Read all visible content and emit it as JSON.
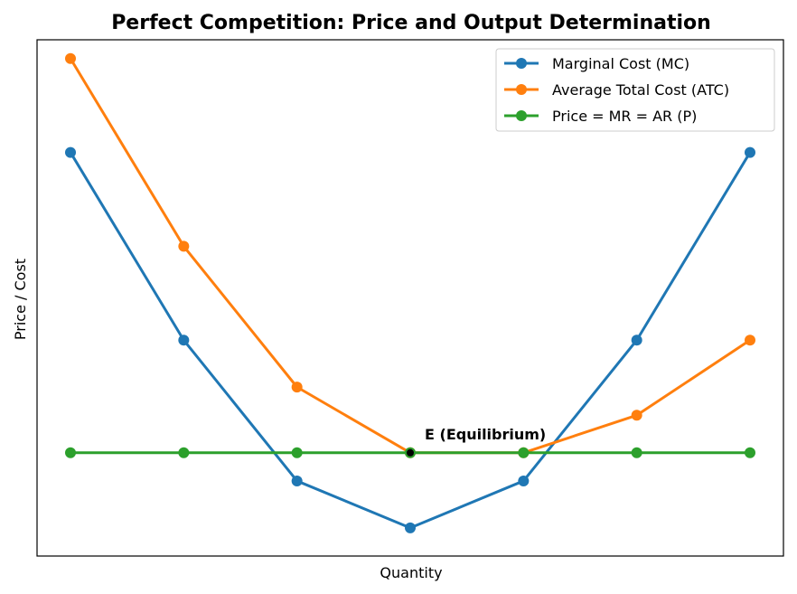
{
  "chart_data": {
    "type": "line",
    "title": "Perfect Competition: Price and Output Determination",
    "xlabel": "Quantity",
    "ylabel": "Price / Cost",
    "x": [
      1,
      2,
      3,
      4,
      5,
      6,
      7
    ],
    "ylim": [
      0.7,
      6.2
    ],
    "grid": false,
    "legend": "top-right",
    "series": [
      {
        "name": "Marginal Cost (MC)",
        "color": "#1f77b4",
        "values": [
          5,
          3,
          1.5,
          1,
          1.5,
          3,
          5
        ]
      },
      {
        "name": "Average Total Cost (ATC)",
        "color": "#ff7f0e",
        "values": [
          6,
          4,
          2.5,
          1.8,
          1.8,
          2.2,
          3
        ]
      },
      {
        "name": "Price = MR = AR (P)",
        "color": "#2ca02c",
        "values": [
          1.8,
          1.8,
          1.8,
          1.8,
          1.8,
          1.8,
          1.8
        ]
      }
    ],
    "annotations": [
      {
        "text": "E (Equilibrium)",
        "x": 4,
        "y": 1.8,
        "marker_color": "#000000"
      }
    ]
  }
}
